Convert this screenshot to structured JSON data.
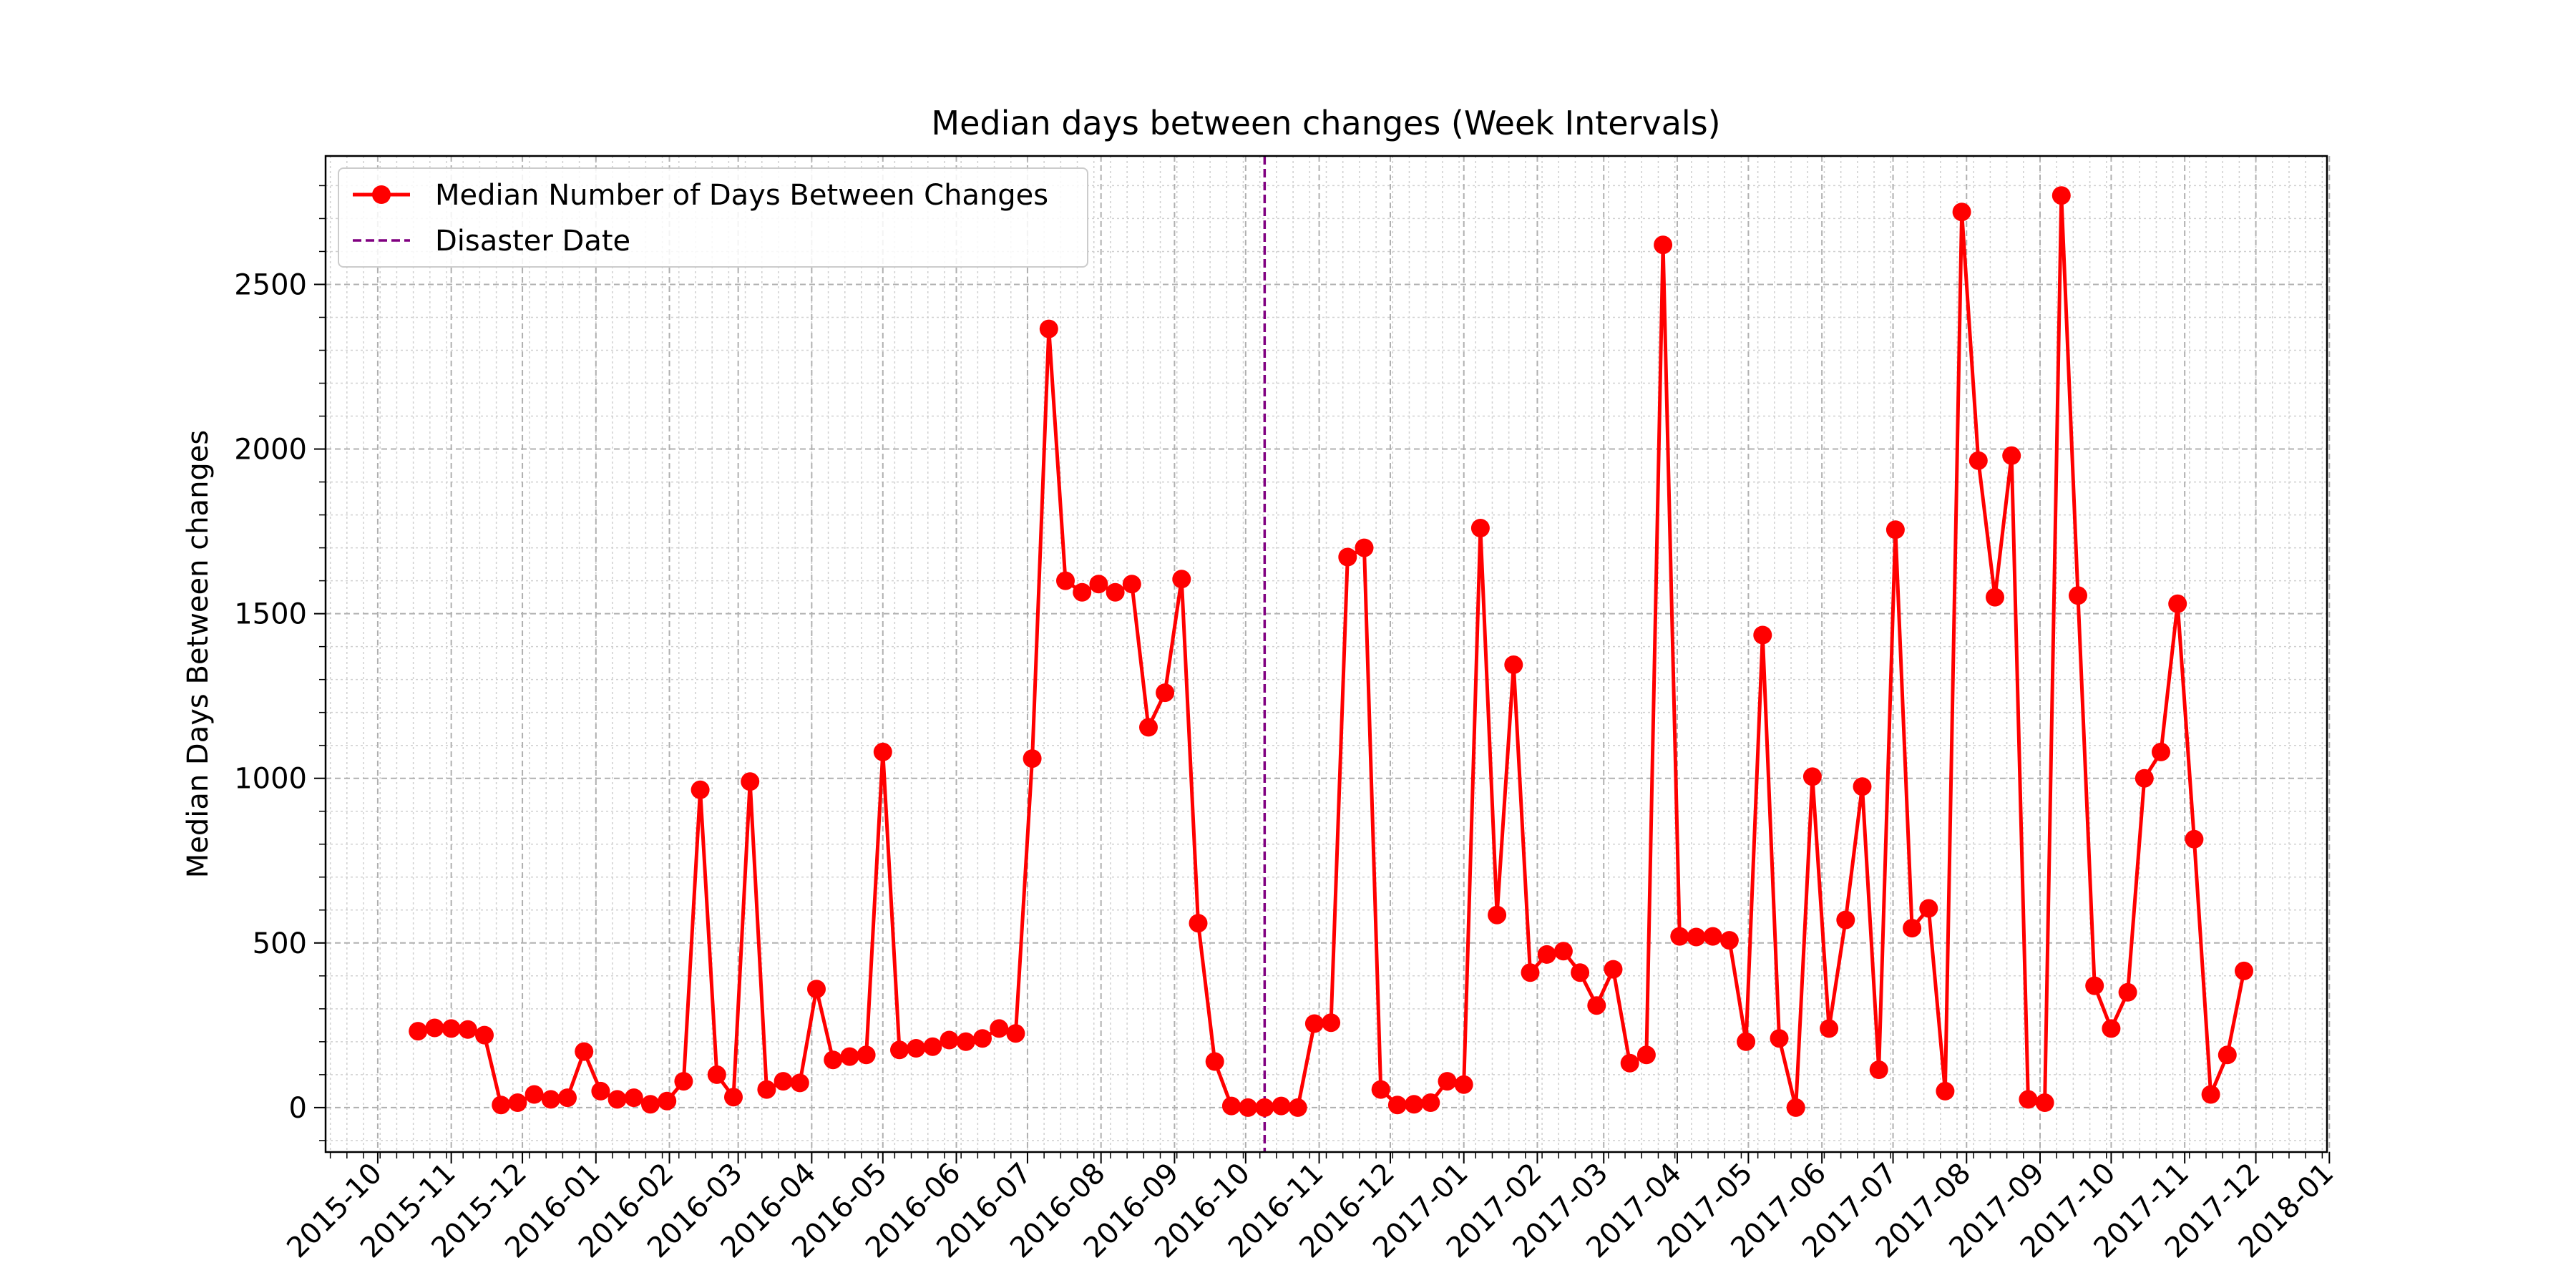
{
  "chart_data": {
    "type": "line",
    "title": "Median days between changes (Week Intervals)",
    "xlabel": "",
    "ylabel": "Median Days Between changes",
    "xlim": [
      "2015-09-09",
      "2017-12-31"
    ],
    "ylim": [
      -135,
      2890
    ],
    "x_ticks": [
      "2015-10",
      "2015-11",
      "2015-12",
      "2016-01",
      "2016-02",
      "2016-03",
      "2016-04",
      "2016-05",
      "2016-06",
      "2016-07",
      "2016-08",
      "2016-09",
      "2016-10",
      "2016-11",
      "2016-12",
      "2017-01",
      "2017-02",
      "2017-03",
      "2017-04",
      "2017-05",
      "2017-06",
      "2017-07",
      "2017-08",
      "2017-09",
      "2017-10",
      "2017-11",
      "2017-12",
      "2018-01"
    ],
    "y_ticks": [
      0,
      500,
      1000,
      1500,
      2000,
      2500
    ],
    "grid": true,
    "legend_position": "top-left",
    "series": [
      {
        "name": "Median Number of Days Between Changes",
        "color": "#ff0000",
        "marker": "circle",
        "x": [
          "2015-10-18",
          "2015-10-25",
          "2015-11-01",
          "2015-11-08",
          "2015-11-15",
          "2015-11-22",
          "2015-11-29",
          "2015-12-06",
          "2015-12-13",
          "2015-12-20",
          "2015-12-27",
          "2016-01-03",
          "2016-01-10",
          "2016-01-17",
          "2016-01-24",
          "2016-01-31",
          "2016-02-07",
          "2016-02-14",
          "2016-02-21",
          "2016-02-28",
          "2016-03-06",
          "2016-03-13",
          "2016-03-20",
          "2016-03-27",
          "2016-04-03",
          "2016-04-10",
          "2016-04-17",
          "2016-04-24",
          "2016-05-01",
          "2016-05-08",
          "2016-05-15",
          "2016-05-22",
          "2016-05-29",
          "2016-06-05",
          "2016-06-12",
          "2016-06-19",
          "2016-06-26",
          "2016-07-03",
          "2016-07-10",
          "2016-07-17",
          "2016-07-24",
          "2016-07-31",
          "2016-08-07",
          "2016-08-14",
          "2016-08-21",
          "2016-08-28",
          "2016-09-04",
          "2016-09-11",
          "2016-09-18",
          "2016-09-25",
          "2016-10-02",
          "2016-10-09",
          "2016-10-16",
          "2016-10-23",
          "2016-10-30",
          "2016-11-06",
          "2016-11-13",
          "2016-11-20",
          "2016-11-27",
          "2016-12-04",
          "2016-12-11",
          "2016-12-18",
          "2016-12-25",
          "2017-01-01",
          "2017-01-08",
          "2017-01-15",
          "2017-01-22",
          "2017-01-29",
          "2017-02-05",
          "2017-02-12",
          "2017-02-19",
          "2017-02-26",
          "2017-03-05",
          "2017-03-12",
          "2017-03-19",
          "2017-03-26",
          "2017-04-02",
          "2017-04-09",
          "2017-04-16",
          "2017-04-23",
          "2017-04-30",
          "2017-05-07",
          "2017-05-14",
          "2017-05-21",
          "2017-05-28",
          "2017-06-04",
          "2017-06-11",
          "2017-06-18",
          "2017-06-25",
          "2017-07-02",
          "2017-07-09",
          "2017-07-16",
          "2017-07-23",
          "2017-07-30",
          "2017-08-06",
          "2017-08-13",
          "2017-08-20",
          "2017-08-27",
          "2017-09-03",
          "2017-09-10",
          "2017-09-17",
          "2017-09-24",
          "2017-10-01",
          "2017-10-08",
          "2017-10-15",
          "2017-10-22",
          "2017-10-29",
          "2017-11-05",
          "2017-11-12",
          "2017-11-19",
          "2017-11-26"
        ],
        "y": [
          232,
          242,
          240,
          237,
          220,
          8,
          15,
          40,
          25,
          30,
          170,
          50,
          25,
          30,
          10,
          20,
          80,
          965,
          100,
          32,
          990,
          55,
          80,
          75,
          360,
          145,
          155,
          160,
          1080,
          175,
          180,
          185,
          205,
          200,
          210,
          240,
          225,
          1060,
          2365,
          1600,
          1565,
          1590,
          1565,
          1590,
          1155,
          1260,
          1605,
          560,
          140,
          5,
          0,
          0,
          5,
          0,
          255,
          258,
          1672,
          1700,
          55,
          8,
          10,
          15,
          80,
          70,
          1760,
          585,
          1345,
          410,
          465,
          475,
          410,
          310,
          420,
          135,
          160,
          2620,
          520,
          518,
          520,
          508,
          200,
          1435,
          210,
          0,
          1005,
          240,
          570,
          975,
          115,
          1755,
          545,
          605,
          50,
          2720,
          1965,
          1550,
          1980,
          25,
          15,
          2770,
          1555,
          370,
          240,
          350,
          1000,
          1080,
          1530,
          815,
          40,
          160,
          415
        ]
      }
    ],
    "vlines": [
      {
        "name": "Disaster Date",
        "x": "2016-10-09",
        "color": "#800080",
        "style": "dashed"
      }
    ]
  }
}
